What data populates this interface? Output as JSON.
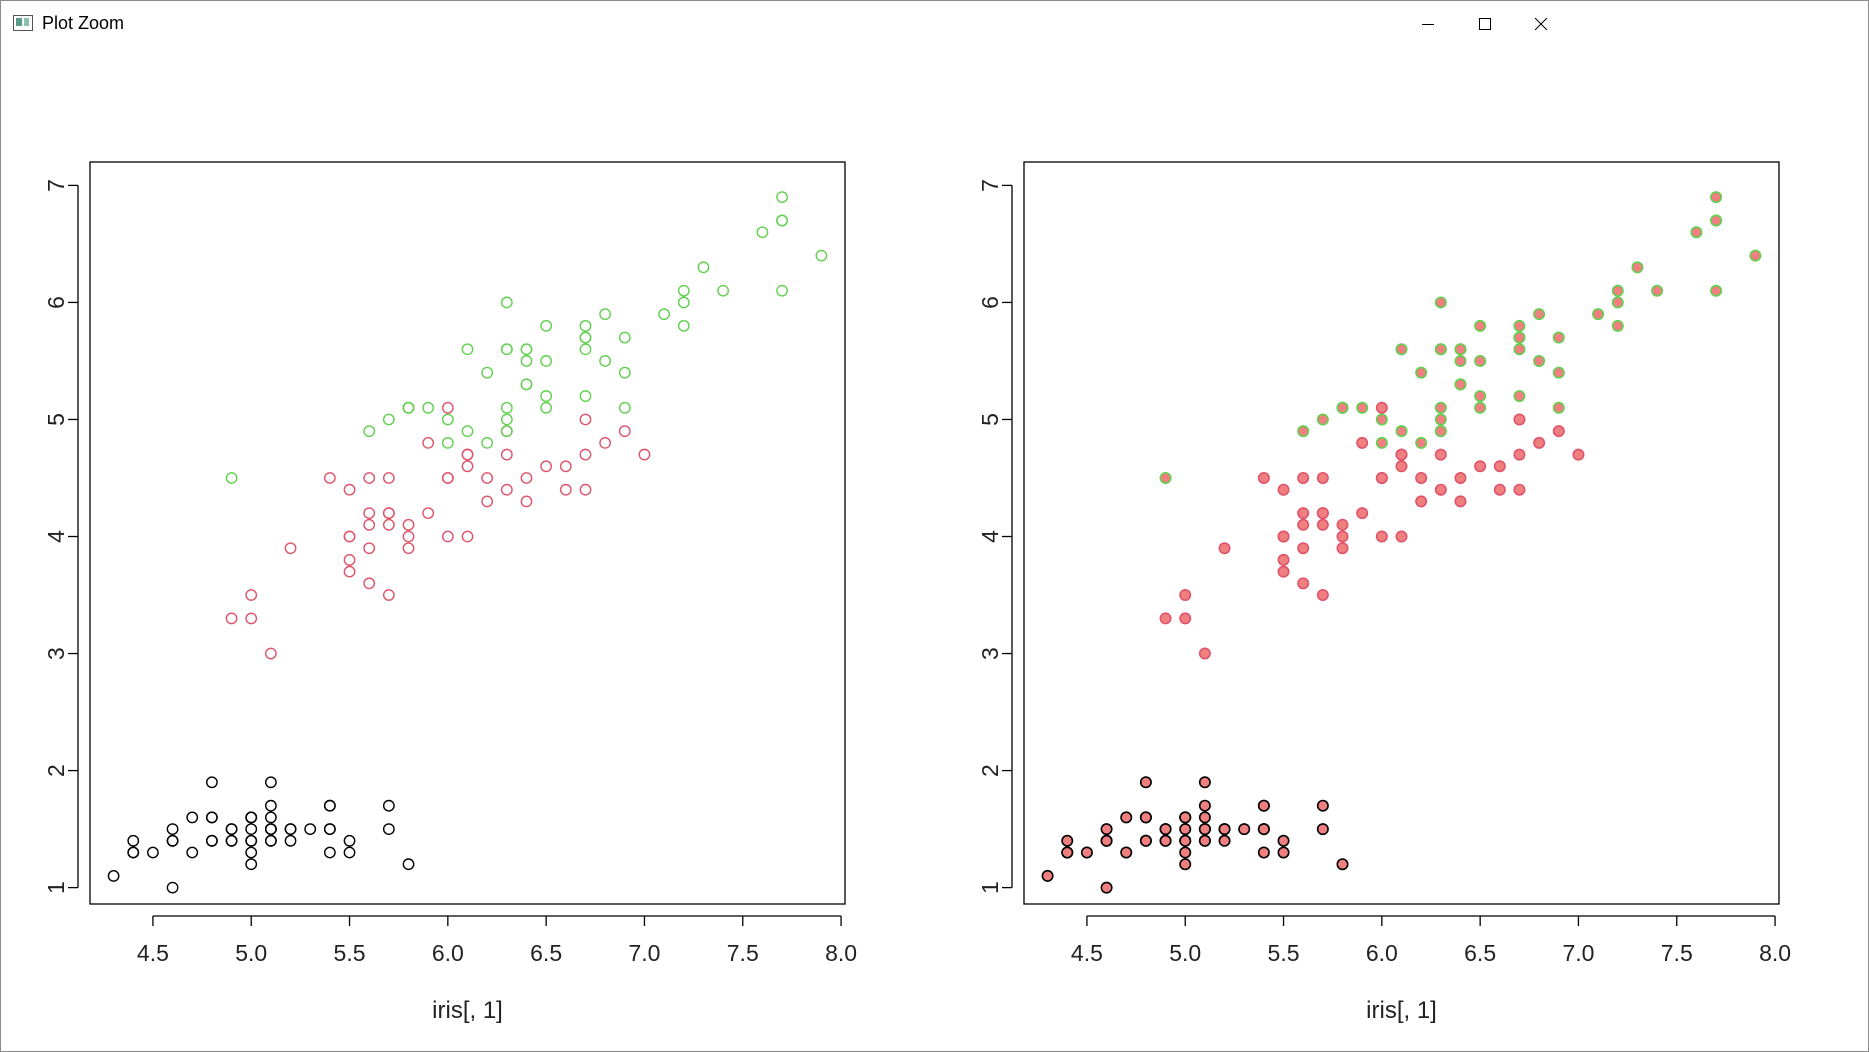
{
  "window": {
    "title": "Plot Zoom",
    "controls": [
      "minimize",
      "maximize",
      "close"
    ]
  },
  "colors": {
    "setosa_open": "#000000",
    "versicolor_open": "#DF536B",
    "virginica_open": "#61D04F",
    "filled_face": "#F08080",
    "filled_border_setosa": "#000000",
    "filled_border_versicolor": "#DF536B",
    "filled_border_virginica": "#61D04F"
  },
  "chart_data": [
    {
      "type": "scatter",
      "title": "",
      "xlabel": "iris[, 1]",
      "ylabel": "",
      "xlim": [
        4.18,
        8.02
      ],
      "ylim": [
        0.86,
        7.2
      ],
      "xticks": [
        "4.5",
        "5.0",
        "5.5",
        "6.0",
        "6.5",
        "7.0",
        "7.5",
        "8.0"
      ],
      "yticks": [
        "1",
        "2",
        "3",
        "4",
        "5",
        "6",
        "7"
      ],
      "marker": "open circle",
      "series": [
        {
          "color": "#000000",
          "points": [
            [
              5.1,
              1.4
            ],
            [
              4.9,
              1.4
            ],
            [
              4.7,
              1.3
            ],
            [
              4.6,
              1.5
            ],
            [
              5.0,
              1.4
            ],
            [
              5.4,
              1.7
            ],
            [
              4.6,
              1.4
            ],
            [
              5.0,
              1.5
            ],
            [
              4.4,
              1.4
            ],
            [
              4.9,
              1.5
            ],
            [
              5.4,
              1.5
            ],
            [
              4.8,
              1.6
            ],
            [
              4.8,
              1.4
            ],
            [
              4.3,
              1.1
            ],
            [
              5.8,
              1.2
            ],
            [
              5.7,
              1.5
            ],
            [
              5.4,
              1.3
            ],
            [
              5.1,
              1.4
            ],
            [
              5.7,
              1.7
            ],
            [
              5.1,
              1.5
            ],
            [
              5.4,
              1.7
            ],
            [
              5.1,
              1.5
            ],
            [
              4.6,
              1.0
            ],
            [
              5.1,
              1.7
            ],
            [
              4.8,
              1.9
            ],
            [
              5.0,
              1.6
            ],
            [
              5.0,
              1.6
            ],
            [
              5.2,
              1.5
            ],
            [
              5.2,
              1.4
            ],
            [
              4.7,
              1.6
            ],
            [
              4.8,
              1.6
            ],
            [
              5.4,
              1.5
            ],
            [
              5.2,
              1.5
            ],
            [
              5.5,
              1.4
            ],
            [
              4.9,
              1.5
            ],
            [
              5.0,
              1.2
            ],
            [
              5.5,
              1.3
            ],
            [
              4.9,
              1.4
            ],
            [
              4.4,
              1.3
            ],
            [
              5.1,
              1.5
            ],
            [
              5.0,
              1.3
            ],
            [
              4.5,
              1.3
            ],
            [
              4.4,
              1.3
            ],
            [
              5.0,
              1.6
            ],
            [
              5.1,
              1.9
            ],
            [
              4.8,
              1.4
            ],
            [
              5.1,
              1.6
            ],
            [
              4.6,
              1.4
            ],
            [
              5.3,
              1.5
            ],
            [
              5.0,
              1.4
            ]
          ]
        },
        {
          "color": "#DF536B",
          "points": [
            [
              7.0,
              4.7
            ],
            [
              6.4,
              4.5
            ],
            [
              6.9,
              4.9
            ],
            [
              5.5,
              4.0
            ],
            [
              6.5,
              4.6
            ],
            [
              5.7,
              4.5
            ],
            [
              6.3,
              4.7
            ],
            [
              4.9,
              3.3
            ],
            [
              6.6,
              4.6
            ],
            [
              5.2,
              3.9
            ],
            [
              5.0,
              3.5
            ],
            [
              5.9,
              4.2
            ],
            [
              6.0,
              4.0
            ],
            [
              6.1,
              4.7
            ],
            [
              5.6,
              3.6
            ],
            [
              6.7,
              4.4
            ],
            [
              5.6,
              4.5
            ],
            [
              5.8,
              4.1
            ],
            [
              6.2,
              4.5
            ],
            [
              5.6,
              3.9
            ],
            [
              5.9,
              4.8
            ],
            [
              6.1,
              4.0
            ],
            [
              6.3,
              4.9
            ],
            [
              6.1,
              4.7
            ],
            [
              6.4,
              4.3
            ],
            [
              6.6,
              4.4
            ],
            [
              6.8,
              4.8
            ],
            [
              6.7,
              5.0
            ],
            [
              6.0,
              4.5
            ],
            [
              5.7,
              3.5
            ],
            [
              5.5,
              3.8
            ],
            [
              5.5,
              3.7
            ],
            [
              5.8,
              3.9
            ],
            [
              6.0,
              5.1
            ],
            [
              5.4,
              4.5
            ],
            [
              6.0,
              4.5
            ],
            [
              6.7,
              4.7
            ],
            [
              6.3,
              4.4
            ],
            [
              5.6,
              4.1
            ],
            [
              5.5,
              4.0
            ],
            [
              5.5,
              4.4
            ],
            [
              6.1,
              4.6
            ],
            [
              5.8,
              4.0
            ],
            [
              5.0,
              3.3
            ],
            [
              5.6,
              4.2
            ],
            [
              5.7,
              4.2
            ],
            [
              5.7,
              4.2
            ],
            [
              6.2,
              4.3
            ],
            [
              5.1,
              3.0
            ],
            [
              5.7,
              4.1
            ]
          ]
        },
        {
          "color": "#61D04F",
          "points": [
            [
              6.3,
              6.0
            ],
            [
              5.8,
              5.1
            ],
            [
              7.1,
              5.9
            ],
            [
              6.3,
              5.6
            ],
            [
              6.5,
              5.8
            ],
            [
              7.6,
              6.6
            ],
            [
              4.9,
              4.5
            ],
            [
              7.3,
              6.3
            ],
            [
              6.7,
              5.8
            ],
            [
              7.2,
              6.1
            ],
            [
              6.5,
              5.1
            ],
            [
              6.4,
              5.3
            ],
            [
              6.8,
              5.5
            ],
            [
              5.7,
              5.0
            ],
            [
              5.8,
              5.1
            ],
            [
              6.4,
              5.3
            ],
            [
              6.5,
              5.5
            ],
            [
              7.7,
              6.7
            ],
            [
              7.7,
              6.9
            ],
            [
              6.0,
              5.0
            ],
            [
              6.9,
              5.7
            ],
            [
              5.6,
              4.9
            ],
            [
              7.7,
              6.7
            ],
            [
              6.3,
              4.9
            ],
            [
              6.7,
              5.7
            ],
            [
              7.2,
              6.0
            ],
            [
              6.2,
              4.8
            ],
            [
              6.1,
              4.9
            ],
            [
              6.4,
              5.6
            ],
            [
              7.2,
              5.8
            ],
            [
              7.4,
              6.1
            ],
            [
              7.9,
              6.4
            ],
            [
              6.4,
              5.6
            ],
            [
              6.3,
              5.1
            ],
            [
              6.1,
              5.6
            ],
            [
              7.7,
              6.1
            ],
            [
              6.3,
              5.6
            ],
            [
              6.4,
              5.5
            ],
            [
              6.0,
              4.8
            ],
            [
              6.9,
              5.4
            ],
            [
              6.7,
              5.6
            ],
            [
              6.9,
              5.1
            ],
            [
              5.8,
              5.1
            ],
            [
              6.8,
              5.9
            ],
            [
              6.7,
              5.7
            ],
            [
              6.7,
              5.2
            ],
            [
              6.3,
              5.0
            ],
            [
              6.5,
              5.2
            ],
            [
              6.2,
              5.4
            ],
            [
              5.9,
              5.1
            ]
          ]
        }
      ]
    },
    {
      "type": "scatter",
      "title": "",
      "xlabel": "iris[, 1]",
      "ylabel": "",
      "xlim": [
        4.18,
        8.02
      ],
      "ylim": [
        0.86,
        7.2
      ],
      "xticks": [
        "4.5",
        "5.0",
        "5.5",
        "6.0",
        "6.5",
        "7.0",
        "7.5",
        "8.0"
      ],
      "yticks": [
        "1",
        "2",
        "3",
        "4",
        "5",
        "6",
        "7"
      ],
      "marker": "filled circle (bg fill, border by species)",
      "series_ref": "same points as first chart"
    }
  ]
}
